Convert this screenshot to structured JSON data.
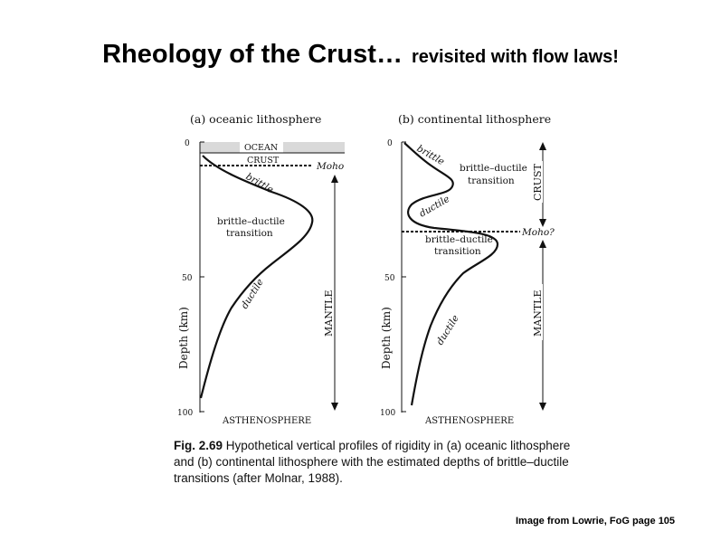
{
  "slide": {
    "title_main": "Rheology of the Crust…",
    "title_sub": "revisited with flow laws!",
    "credit": "Image from Lowrie, FoG page 105"
  },
  "figure": {
    "panel_a": {
      "title": "(a)  oceanic lithosphere",
      "ocean": "OCEAN",
      "crust": "CRUST",
      "moho": "Moho",
      "brittle": "brittle",
      "transition_1": "brittle–ductile",
      "transition_2": "transition",
      "ductile": "ductile",
      "mantle": "MANTLE",
      "asthenosphere": "ASTHENOSPHERE",
      "ylabel": "Depth (km)",
      "ticks": [
        "0",
        "50",
        "100"
      ]
    },
    "panel_b": {
      "title": "(b)  continental lithosphere",
      "brittle": "brittle",
      "transition_upper_1": "brittle–ductile",
      "transition_upper_2": "transition",
      "ductile_upper": "ductile",
      "moho": "Moho?",
      "transition_lower_1": "brittle–ductile",
      "transition_lower_2": "transition",
      "ductile_lower": "ductile",
      "crust": "CRUST",
      "mantle": "MANTLE",
      "asthenosphere": "ASTHENOSPHERE",
      "ylabel": "Depth (km)",
      "ticks": [
        "0",
        "50",
        "100"
      ]
    },
    "caption": {
      "label": "Fig. 2.69",
      "text": "Hypothetical vertical profiles of rigidity in (a) oceanic lithosphere and (b) continental lithosphere with the estimated depths of brittle–ductile transitions (after Molnar, 1988)."
    },
    "colors": {
      "ocean_fill": "#d9d9d9",
      "ink": "#111111"
    }
  }
}
